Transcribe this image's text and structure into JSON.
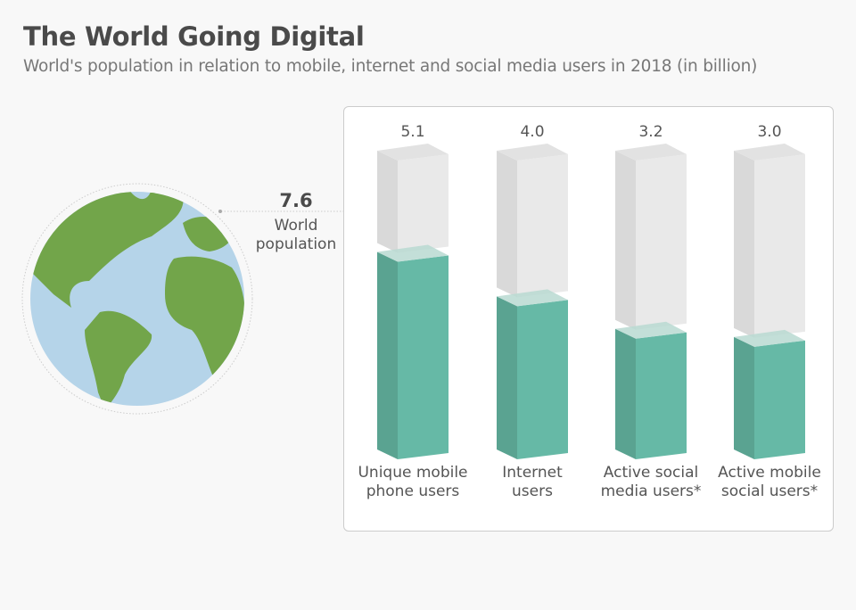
{
  "chart_data": {
    "type": "bar",
    "title": "The World Going Digital",
    "subtitle": "World's population in relation to mobile, internet and social media users in 2018 (in billion)",
    "categories": [
      [
        "Unique mobile",
        "phone users"
      ],
      [
        "Internet",
        "users"
      ],
      [
        "Active social",
        "media users*"
      ],
      [
        "Active mobile",
        "social users*"
      ]
    ],
    "values": [
      5.1,
      4.0,
      3.2,
      3.0
    ],
    "value_labels": [
      "5.1",
      "4.0",
      "3.2",
      "3.0"
    ],
    "total": 7.6,
    "total_label": "7.6",
    "total_caption": [
      "World",
      "population"
    ],
    "ylim": [
      0,
      7.6
    ],
    "colors": {
      "bar": "#66b9a6",
      "bar_side": "#5aa391",
      "empty": "#e9e9e9",
      "empty_side": "#d9d9d9",
      "ocean": "#b5d4e9",
      "land": "#72a54a"
    }
  }
}
